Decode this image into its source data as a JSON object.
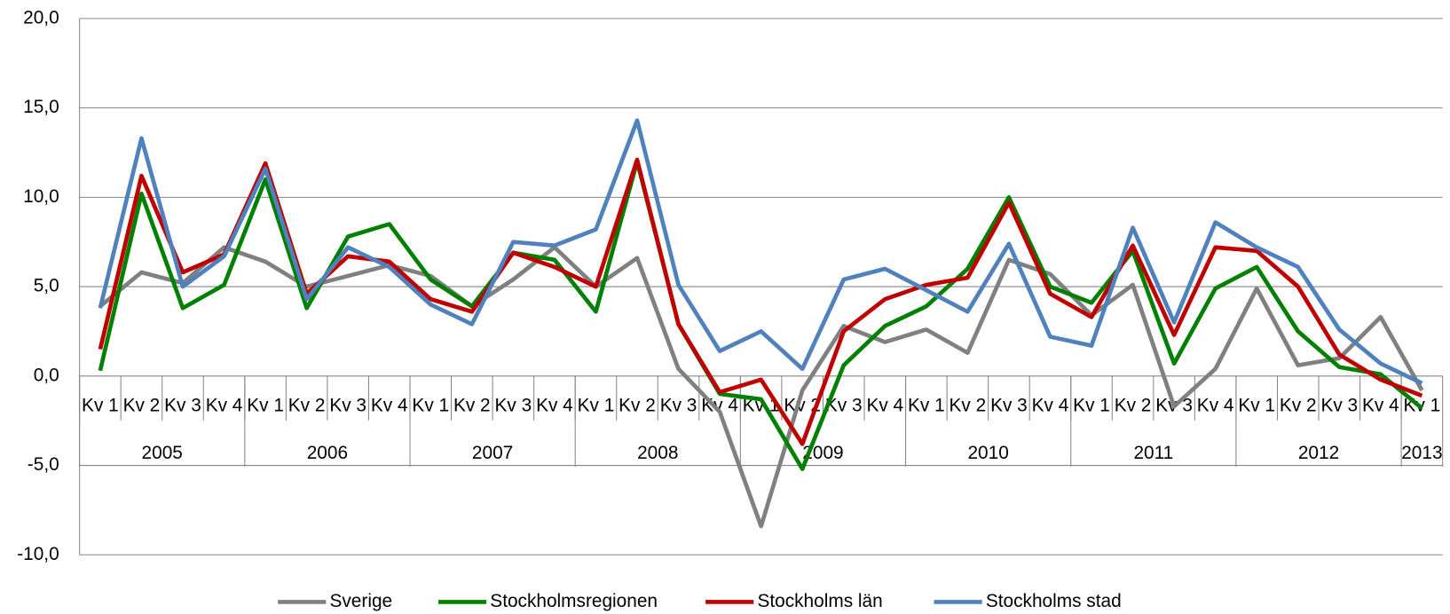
{
  "chart_data": {
    "type": "line",
    "categories": [
      "Kv 1",
      "Kv 2",
      "Kv 3",
      "Kv 4",
      "Kv 1",
      "Kv 2",
      "Kv 3",
      "Kv 4",
      "Kv 1",
      "Kv 2",
      "Kv 3",
      "Kv 4",
      "Kv 1",
      "Kv 2",
      "Kv 3",
      "Kv 4",
      "Kv 1",
      "Kv 2",
      "Kv 3",
      "Kv 4",
      "Kv 1",
      "Kv 2",
      "Kv 3",
      "Kv 4",
      "Kv 1",
      "Kv 2",
      "Kv 3",
      "Kv 4",
      "Kv 1",
      "Kv 2",
      "Kv 3",
      "Kv 4",
      "Kv 1"
    ],
    "year_labels": [
      "2005",
      null,
      null,
      null,
      "2006",
      null,
      null,
      null,
      "2007",
      null,
      null,
      null,
      "2008",
      null,
      null,
      null,
      "2009",
      null,
      null,
      null,
      "2010",
      null,
      null,
      null,
      "2011",
      null,
      null,
      null,
      "2012",
      null,
      null,
      null,
      "2013"
    ],
    "series": [
      {
        "name": "Sverige",
        "color": "#808080",
        "values": [
          3.9,
          5.8,
          5.2,
          7.2,
          6.4,
          5.0,
          5.6,
          6.2,
          5.6,
          3.9,
          5.4,
          7.2,
          5.0,
          6.6,
          0.4,
          -2.0,
          -8.4,
          -0.8,
          2.8,
          1.9,
          2.6,
          1.3,
          6.5,
          5.7,
          3.4,
          5.1,
          -1.7,
          0.4,
          4.9,
          0.6,
          1.0,
          3.3,
          -0.8
        ]
      },
      {
        "name": "Stockholmsregionen",
        "color": "#008000",
        "values": [
          0.3,
          10.2,
          3.8,
          5.1,
          11.0,
          3.8,
          7.8,
          8.5,
          5.4,
          3.9,
          6.9,
          6.5,
          3.6,
          12.0,
          2.9,
          -1.0,
          -1.3,
          -5.2,
          0.6,
          2.8,
          3.9,
          6.0,
          10.0,
          5.0,
          4.1,
          7.0,
          0.7,
          4.9,
          6.1,
          2.5,
          0.5,
          0.1,
          -1.8
        ]
      },
      {
        "name": "Stockholms län",
        "color": "#c00000",
        "values": [
          1.5,
          11.2,
          5.8,
          6.8,
          11.9,
          4.6,
          6.7,
          6.4,
          4.3,
          3.6,
          6.9,
          6.1,
          5.0,
          12.1,
          2.9,
          -0.9,
          -0.2,
          -3.8,
          2.5,
          4.3,
          5.1,
          5.5,
          9.7,
          4.6,
          3.3,
          7.3,
          2.3,
          7.2,
          7.0,
          5.0,
          1.2,
          -0.2,
          -1.1
        ]
      },
      {
        "name": "Stockholms stad",
        "color": "#4f81bd",
        "values": [
          3.8,
          13.3,
          5.0,
          6.7,
          11.6,
          4.3,
          7.2,
          6.1,
          4.0,
          2.9,
          7.5,
          7.3,
          8.2,
          14.3,
          5.1,
          1.4,
          2.5,
          0.4,
          5.4,
          6.0,
          4.8,
          3.6,
          7.4,
          2.2,
          1.7,
          8.3,
          3.0,
          8.6,
          7.2,
          6.1,
          2.6,
          0.7,
          -0.4
        ]
      }
    ],
    "ylim": [
      -10,
      20
    ],
    "yticks": [
      {
        "value": -10,
        "label": "-10,0"
      },
      {
        "value": -5,
        "label": "-5,0"
      },
      {
        "value": 0,
        "label": "0,0"
      },
      {
        "value": 5,
        "label": "5,0"
      },
      {
        "value": 10,
        "label": "10,0"
      },
      {
        "value": 15,
        "label": "15,0"
      },
      {
        "value": 20,
        "label": "20,0"
      }
    ],
    "grid": true,
    "legend": "bottom"
  }
}
